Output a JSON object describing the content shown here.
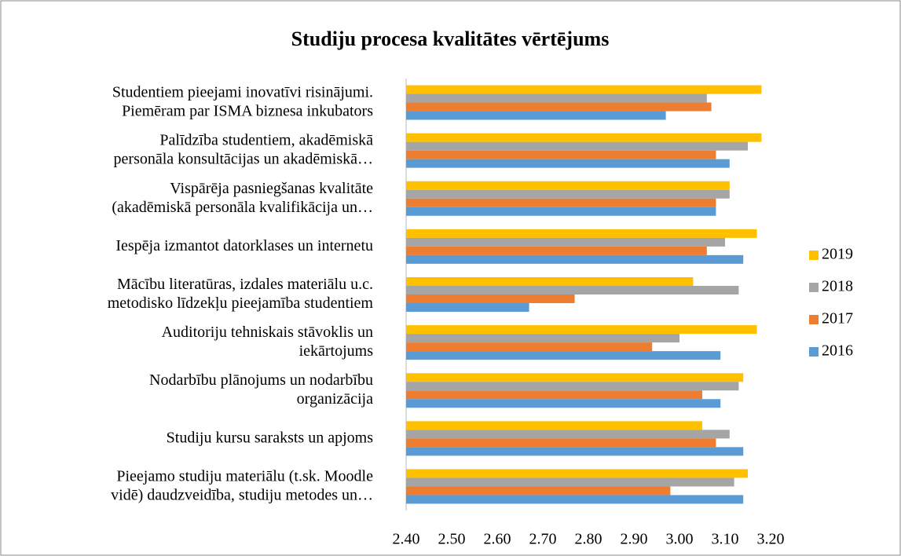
{
  "chart_data": {
    "type": "bar",
    "orientation": "horizontal",
    "title": "Studiju procesa kvalitātes vērtējums",
    "categories": [
      [
        "Studentiem pieejami inovatīvi risinājumi.",
        "Piemēram par ISMA biznesa inkubators"
      ],
      [
        "Palīdzība studentiem, akadēmiskā",
        "personāla konsultācijas un akadēmiskā…"
      ],
      [
        "Vispārēja pasniegšanas kvalitāte",
        "(akadēmiskā personāla kvalifikācija un…"
      ],
      [
        "Iespēja izmantot datorklases un internetu"
      ],
      [
        "Mācību literatūras, izdales materiālu u.c.",
        "metodisko līdzekļu pieejamība studentiem"
      ],
      [
        "Auditoriju tehniskais stāvoklis un",
        "iekārtojums"
      ],
      [
        "Nodarbību plānojums un nodarbību",
        "organizācija"
      ],
      [
        "Studiju kursu saraksts un apjoms"
      ],
      [
        "Pieejamo studiju materiālu (t.sk. Moodle",
        "vidē) daudzveidība, studiju metodes un…"
      ]
    ],
    "series": [
      {
        "name": "2019",
        "color": "#ffc000",
        "values": [
          3.18,
          3.18,
          3.11,
          3.17,
          3.03,
          3.17,
          3.14,
          3.05,
          3.15
        ]
      },
      {
        "name": "2018",
        "color": "#a5a5a5",
        "values": [
          3.06,
          3.15,
          3.11,
          3.1,
          3.13,
          3.0,
          3.13,
          3.11,
          3.12
        ]
      },
      {
        "name": "2017",
        "color": "#ed7d31",
        "values": [
          3.07,
          3.08,
          3.08,
          3.06,
          2.77,
          2.94,
          3.05,
          3.08,
          2.98
        ]
      },
      {
        "name": "2016",
        "color": "#5b9bd5",
        "values": [
          2.97,
          3.11,
          3.08,
          3.14,
          2.67,
          3.09,
          3.09,
          3.14,
          3.14
        ]
      }
    ],
    "xlim": [
      2.4,
      3.2
    ],
    "xticks": [
      {
        "value": 2.4,
        "label": "2.40"
      },
      {
        "value": 2.5,
        "label": "2.50"
      },
      {
        "value": 2.6,
        "label": "2.60"
      },
      {
        "value": 2.7,
        "label": "2.70"
      },
      {
        "value": 2.8,
        "label": "2.80"
      },
      {
        "value": 2.9,
        "label": "2.90"
      },
      {
        "value": 3.0,
        "label": "3.00"
      },
      {
        "value": 3.1,
        "label": "3.10"
      },
      {
        "value": 3.2,
        "label": "3.20"
      }
    ],
    "legend": "right"
  }
}
